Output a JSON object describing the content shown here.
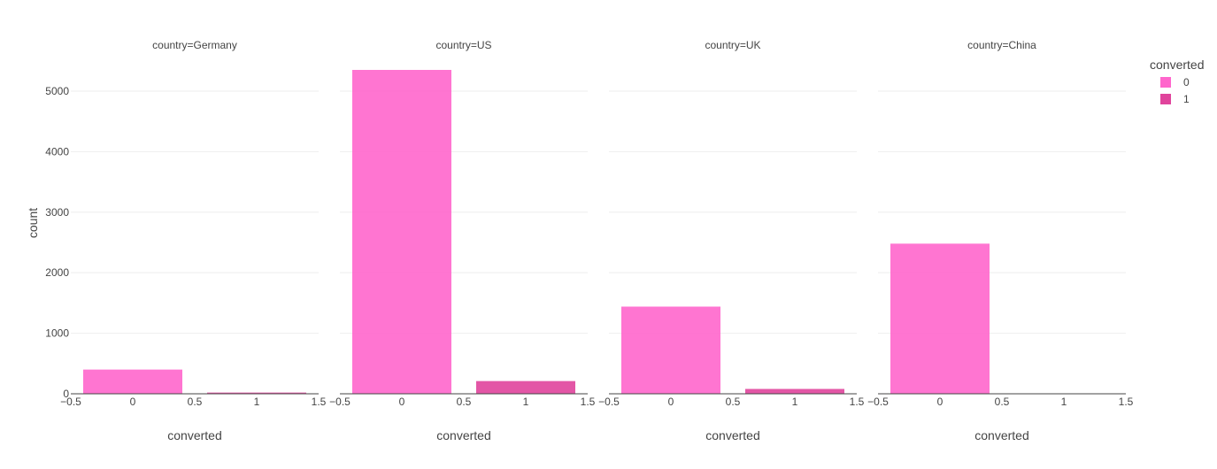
{
  "chart_data": {
    "type": "bar",
    "facet_label": "country",
    "y_axis_label": "count",
    "x_axis_label": "converted",
    "ylim": [
      0,
      5350
    ],
    "xlim": [
      -0.5,
      1.5
    ],
    "y_ticks": [
      0,
      1000,
      2000,
      3000,
      4000,
      5000
    ],
    "x_ticks": [
      -0.5,
      0,
      0.5,
      1,
      1.5
    ],
    "x_tick_labels": [
      "−0.5",
      "0",
      "0.5",
      "1",
      "1.5"
    ],
    "grid": true,
    "legend": {
      "title": "converted",
      "placement": "top-right",
      "items": [
        {
          "label": "0",
          "color": "#ff66cc"
        },
        {
          "label": "1",
          "color": "#e0449c"
        }
      ]
    },
    "panels": [
      {
        "title": "country=Germany",
        "bars": [
          {
            "x": 0,
            "value": 400,
            "series": "0"
          },
          {
            "x": 1,
            "value": 20,
            "series": "1"
          }
        ]
      },
      {
        "title": "country=US",
        "bars": [
          {
            "x": 0,
            "value": 5350,
            "series": "0"
          },
          {
            "x": 1,
            "value": 210,
            "series": "1"
          }
        ]
      },
      {
        "title": "country=UK",
        "bars": [
          {
            "x": 0,
            "value": 1440,
            "series": "0"
          },
          {
            "x": 1,
            "value": 80,
            "series": "1"
          }
        ]
      },
      {
        "title": "country=China",
        "bars": [
          {
            "x": 0,
            "value": 2480,
            "series": "0"
          },
          {
            "x": 1,
            "value": 3,
            "series": "1"
          }
        ]
      }
    ]
  }
}
